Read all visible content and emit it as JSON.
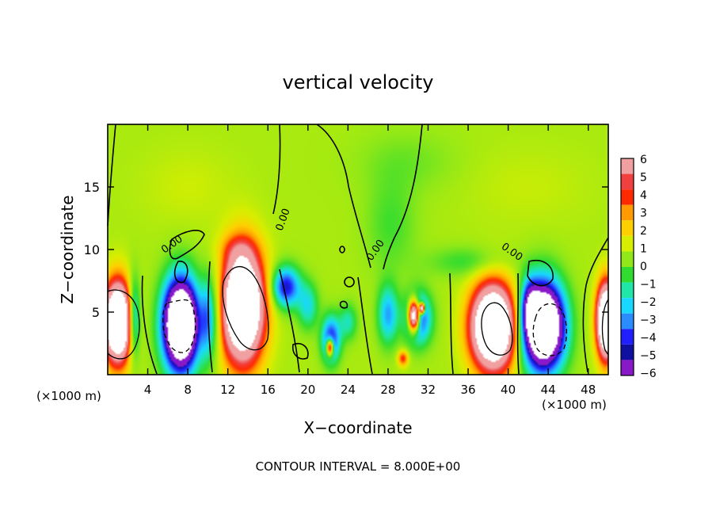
{
  "chart_data": {
    "type": "heatmap",
    "title": "vertical velocity",
    "xlabel": "X−coordinate",
    "ylabel": "Z−coordinate",
    "x_unit_left": "(×1000 m)",
    "x_unit_right": "(×1000 m)",
    "footer": "CONTOUR INTERVAL = 8.000E+00",
    "xlim": [
      0,
      50
    ],
    "ylim": [
      0,
      20
    ],
    "x_ticks": [
      {
        "value": 4,
        "label": "4"
      },
      {
        "value": 8,
        "label": "8"
      },
      {
        "value": 12,
        "label": "12"
      },
      {
        "value": 16,
        "label": "16"
      },
      {
        "value": 20,
        "label": "20"
      },
      {
        "value": 24,
        "label": "24"
      },
      {
        "value": 28,
        "label": "28"
      },
      {
        "value": 32,
        "label": "32"
      },
      {
        "value": 36,
        "label": "36"
      },
      {
        "value": 40,
        "label": "40"
      },
      {
        "value": 44,
        "label": "44"
      },
      {
        "value": 48,
        "label": "48"
      }
    ],
    "y_ticks": [
      {
        "value": 5,
        "label": "5"
      },
      {
        "value": 10,
        "label": "10"
      },
      {
        "value": 15,
        "label": "15"
      }
    ],
    "contour_labels": [
      {
        "text": "0.00",
        "x": 17.8,
        "y": 12.3,
        "angle": -70
      },
      {
        "text": "0.00",
        "x": 6.6,
        "y": 10.2,
        "angle": -35
      },
      {
        "text": "0.00",
        "x": 27.0,
        "y": 9.8,
        "angle": -55
      },
      {
        "text": "0.00",
        "x": 40.2,
        "y": 9.6,
        "angle": 35
      }
    ],
    "colorbar": {
      "levels": [
        {
          "value": 6,
          "label": "6",
          "color": "#f0a0a0"
        },
        {
          "value": 5,
          "label": "5",
          "color": "#f04040"
        },
        {
          "value": 4,
          "label": "4",
          "color": "#ff2a00"
        },
        {
          "value": 3,
          "label": "3",
          "color": "#ff9a00"
        },
        {
          "value": 2,
          "label": "2",
          "color": "#ffd000"
        },
        {
          "value": 1,
          "label": "1",
          "color": "#d8ee00"
        },
        {
          "value": 0,
          "label": "0",
          "color": "#90e818"
        },
        {
          "value": -1,
          "label": "−1",
          "color": "#30dc30"
        },
        {
          "value": -2,
          "label": "−2",
          "color": "#20e6a8"
        },
        {
          "value": -3,
          "label": "−3",
          "color": "#18d8ff"
        },
        {
          "value": -4,
          "label": "−4",
          "color": "#2a8cff"
        },
        {
          "value": -5,
          "label": "−5",
          "color": "#2020ff"
        },
        {
          "value": -6,
          "label": "−6",
          "color": "#1010a0"
        }
      ],
      "min_color": "#8818c8",
      "background_color": "#48e838",
      "extreme_color": "#ffffff"
    },
    "features": [
      {
        "x": 1.0,
        "z": 4.2,
        "rx": 1.3,
        "rz": 3.0,
        "w": 16
      },
      {
        "x": 2.6,
        "z": 4.5,
        "rx": 0.6,
        "rz": 3.0,
        "w": -5
      },
      {
        "x": 7.3,
        "z": 4.0,
        "rx": 1.7,
        "rz": 3.5,
        "w": -16
      },
      {
        "x": 10.0,
        "z": 4.5,
        "rx": 0.7,
        "rz": 3.2,
        "w": -4
      },
      {
        "x": 13.5,
        "z": 5.5,
        "rx": 2.0,
        "rz": 4.2,
        "w": 16
      },
      {
        "x": 11.0,
        "z": 5.0,
        "rx": 0.6,
        "rz": 3.5,
        "w": -2
      },
      {
        "x": 17.8,
        "z": 7.0,
        "rx": 1.4,
        "rz": 1.6,
        "w": -6
      },
      {
        "x": 20.0,
        "z": 5.5,
        "rx": 1.0,
        "rz": 1.8,
        "w": -3
      },
      {
        "x": 22.3,
        "z": 2.8,
        "rx": 0.9,
        "rz": 1.8,
        "w": -6
      },
      {
        "x": 22.2,
        "z": 2.2,
        "rx": 0.35,
        "rz": 0.7,
        "w": 9
      },
      {
        "x": 24.0,
        "z": 4.2,
        "rx": 0.9,
        "rz": 1.4,
        "w": -2.5
      },
      {
        "x": 28.0,
        "z": 4.8,
        "rx": 1.0,
        "rz": 2.3,
        "w": -4
      },
      {
        "x": 29.5,
        "z": 1.3,
        "rx": 0.5,
        "rz": 0.6,
        "w": 4
      },
      {
        "x": 31.0,
        "z": 4.5,
        "rx": 1.3,
        "rz": 2.0,
        "w": -6
      },
      {
        "x": 30.6,
        "z": 4.7,
        "rx": 0.55,
        "rz": 1.2,
        "w": 14
      },
      {
        "x": 31.4,
        "z": 5.3,
        "rx": 0.25,
        "rz": 0.4,
        "w": 12
      },
      {
        "x": 38.5,
        "z": 3.8,
        "rx": 2.1,
        "rz": 3.2,
        "w": 16
      },
      {
        "x": 43.5,
        "z": 3.9,
        "rx": 2.0,
        "rz": 3.3,
        "w": -16
      },
      {
        "x": 42.2,
        "z": 5.5,
        "rx": 0.8,
        "rz": 2.0,
        "w": -4
      },
      {
        "x": 49.8,
        "z": 4.3,
        "rx": 0.9,
        "rz": 2.8,
        "w": 16
      },
      {
        "x": 28.3,
        "z": 12.0,
        "rx": 2.5,
        "rz": 3.8,
        "w": -1.2
      },
      {
        "x": 36.0,
        "z": 9.0,
        "rx": 4.0,
        "rz": 1.2,
        "w": -1.4
      },
      {
        "x": 30.0,
        "z": 17.0,
        "rx": 5.0,
        "rz": 2.5,
        "w": -0.7
      },
      {
        "x": 13.0,
        "z": 10.0,
        "rx": 1.8,
        "rz": 1.2,
        "w": 1.5
      },
      {
        "x": 8.0,
        "z": 15.0,
        "rx": 4.5,
        "rz": 3.0,
        "w": 0.5
      },
      {
        "x": 42.0,
        "z": 15.0,
        "rx": 6.0,
        "rz": 3.0,
        "w": 0.4
      }
    ],
    "annotation_marks": [
      "x"
    ]
  }
}
